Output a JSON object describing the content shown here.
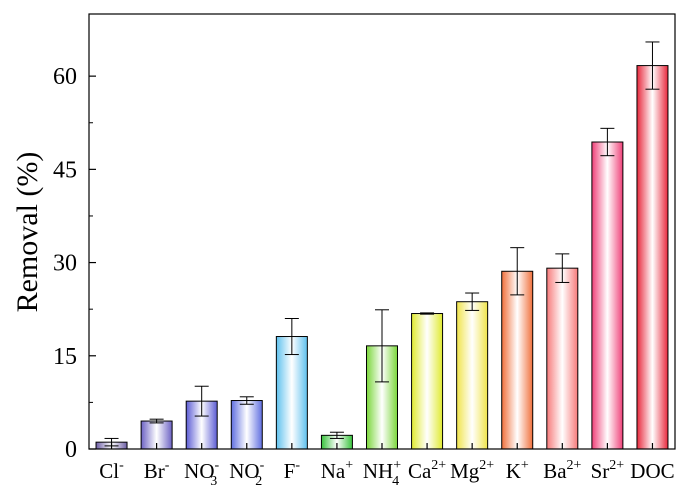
{
  "chart_data": {
    "type": "bar",
    "ylabel": "Removal (%)",
    "ylim": [
      0,
      70
    ],
    "yticks": [
      0,
      15,
      30,
      45,
      60
    ],
    "grid": false,
    "categories": [
      {
        "base": "Cl",
        "sup": "-",
        "sub": ""
      },
      {
        "base": "Br",
        "sup": "-",
        "sub": ""
      },
      {
        "base": "NO",
        "sup": "-",
        "sub": "3"
      },
      {
        "base": "NO",
        "sup": "-",
        "sub": "2"
      },
      {
        "base": "F",
        "sup": "-",
        "sub": ""
      },
      {
        "base": "Na",
        "sup": "+",
        "sub": ""
      },
      {
        "base": "NH",
        "sup": "+",
        "sub": "4"
      },
      {
        "base": "Ca",
        "sup": "2+",
        "sub": ""
      },
      {
        "base": "Mg",
        "sup": "2+",
        "sub": ""
      },
      {
        "base": "K",
        "sup": "+",
        "sub": ""
      },
      {
        "base": "Ba",
        "sup": "2+",
        "sub": ""
      },
      {
        "base": "Sr",
        "sup": "2+",
        "sub": ""
      },
      {
        "base": "DOC",
        "sup": "",
        "sub": ""
      }
    ],
    "values": [
      1.1,
      4.5,
      7.7,
      7.8,
      18.1,
      2.2,
      16.6,
      21.8,
      23.7,
      28.6,
      29.1,
      49.4,
      61.7
    ],
    "errors": [
      0.6,
      0.3,
      2.4,
      0.6,
      2.9,
      0.5,
      5.8,
      0.1,
      1.4,
      3.8,
      2.3,
      2.2,
      3.8
    ],
    "colors": [
      "#6e5fa6",
      "#6c62c4",
      "#5c5cd4",
      "#5f6ee0",
      "#5fc1ee",
      "#38c23c",
      "#7ad63a",
      "#e0ea30",
      "#f0e44a",
      "#f0703c",
      "#f77a7a",
      "#ef4078",
      "#e8283c"
    ]
  }
}
